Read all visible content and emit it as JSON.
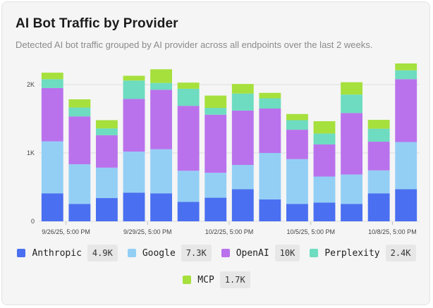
{
  "title": "AI Bot Traffic by Provider",
  "subtitle": "Detected AI bot traffic grouped by AI provider across all endpoints over the last 2 weeks.",
  "chart_data": {
    "type": "bar",
    "stacked": true,
    "ylim": [
      0,
      2300
    ],
    "y_ticks": [
      {
        "value": 0,
        "label": "0"
      },
      {
        "value": 1000,
        "label": "1K"
      },
      {
        "value": 2000,
        "label": "2K"
      }
    ],
    "x_ticks": [
      {
        "index": 0.5,
        "label": "9/26/25, 5:00 PM"
      },
      {
        "index": 3.5,
        "label": "9/29/25, 5:00 PM"
      },
      {
        "index": 6.5,
        "label": "10/2/25, 5:00 PM"
      },
      {
        "index": 9.5,
        "label": "10/5/25, 5:00 PM"
      },
      {
        "index": 12.5,
        "label": "10/8/25, 5:00 PM"
      }
    ],
    "categories": [
      "0",
      "1",
      "2",
      "3",
      "4",
      "5",
      "6",
      "7",
      "8",
      "9",
      "10",
      "11",
      "12",
      "13"
    ],
    "series": [
      {
        "name": "Anthropic",
        "color": "#4a6ff0",
        "values": [
          410,
          255,
          340,
          420,
          410,
          285,
          345,
          470,
          320,
          255,
          275,
          255,
          410,
          470
        ]
      },
      {
        "name": "Google",
        "color": "#93cff5",
        "values": [
          760,
          580,
          445,
          600,
          645,
          455,
          365,
          355,
          680,
          655,
          380,
          430,
          335,
          690
        ]
      },
      {
        "name": "OpenAI",
        "color": "#b972ec",
        "values": [
          780,
          700,
          475,
          770,
          870,
          950,
          850,
          795,
          650,
          430,
          470,
          900,
          420,
          920
        ]
      },
      {
        "name": "Perplexity",
        "color": "#6ddcc0",
        "values": [
          130,
          130,
          100,
          270,
          100,
          250,
          100,
          250,
          150,
          140,
          160,
          270,
          190,
          130
        ]
      },
      {
        "name": "MCP",
        "color": "#a6e03d",
        "values": [
          95,
          120,
          120,
          70,
          200,
          90,
          180,
          140,
          80,
          90,
          180,
          180,
          130,
          100
        ]
      }
    ]
  },
  "legend": [
    {
      "label": "Anthropic",
      "value": "4.9K",
      "color": "#4a6ff0"
    },
    {
      "label": "Google",
      "value": "7.3K",
      "color": "#93cff5"
    },
    {
      "label": "OpenAI",
      "value": "10K",
      "color": "#b972ec"
    },
    {
      "label": "Perplexity",
      "value": "2.4K",
      "color": "#6ddcc0"
    },
    {
      "label": "MCP",
      "value": "1.7K",
      "color": "#a6e03d"
    }
  ]
}
